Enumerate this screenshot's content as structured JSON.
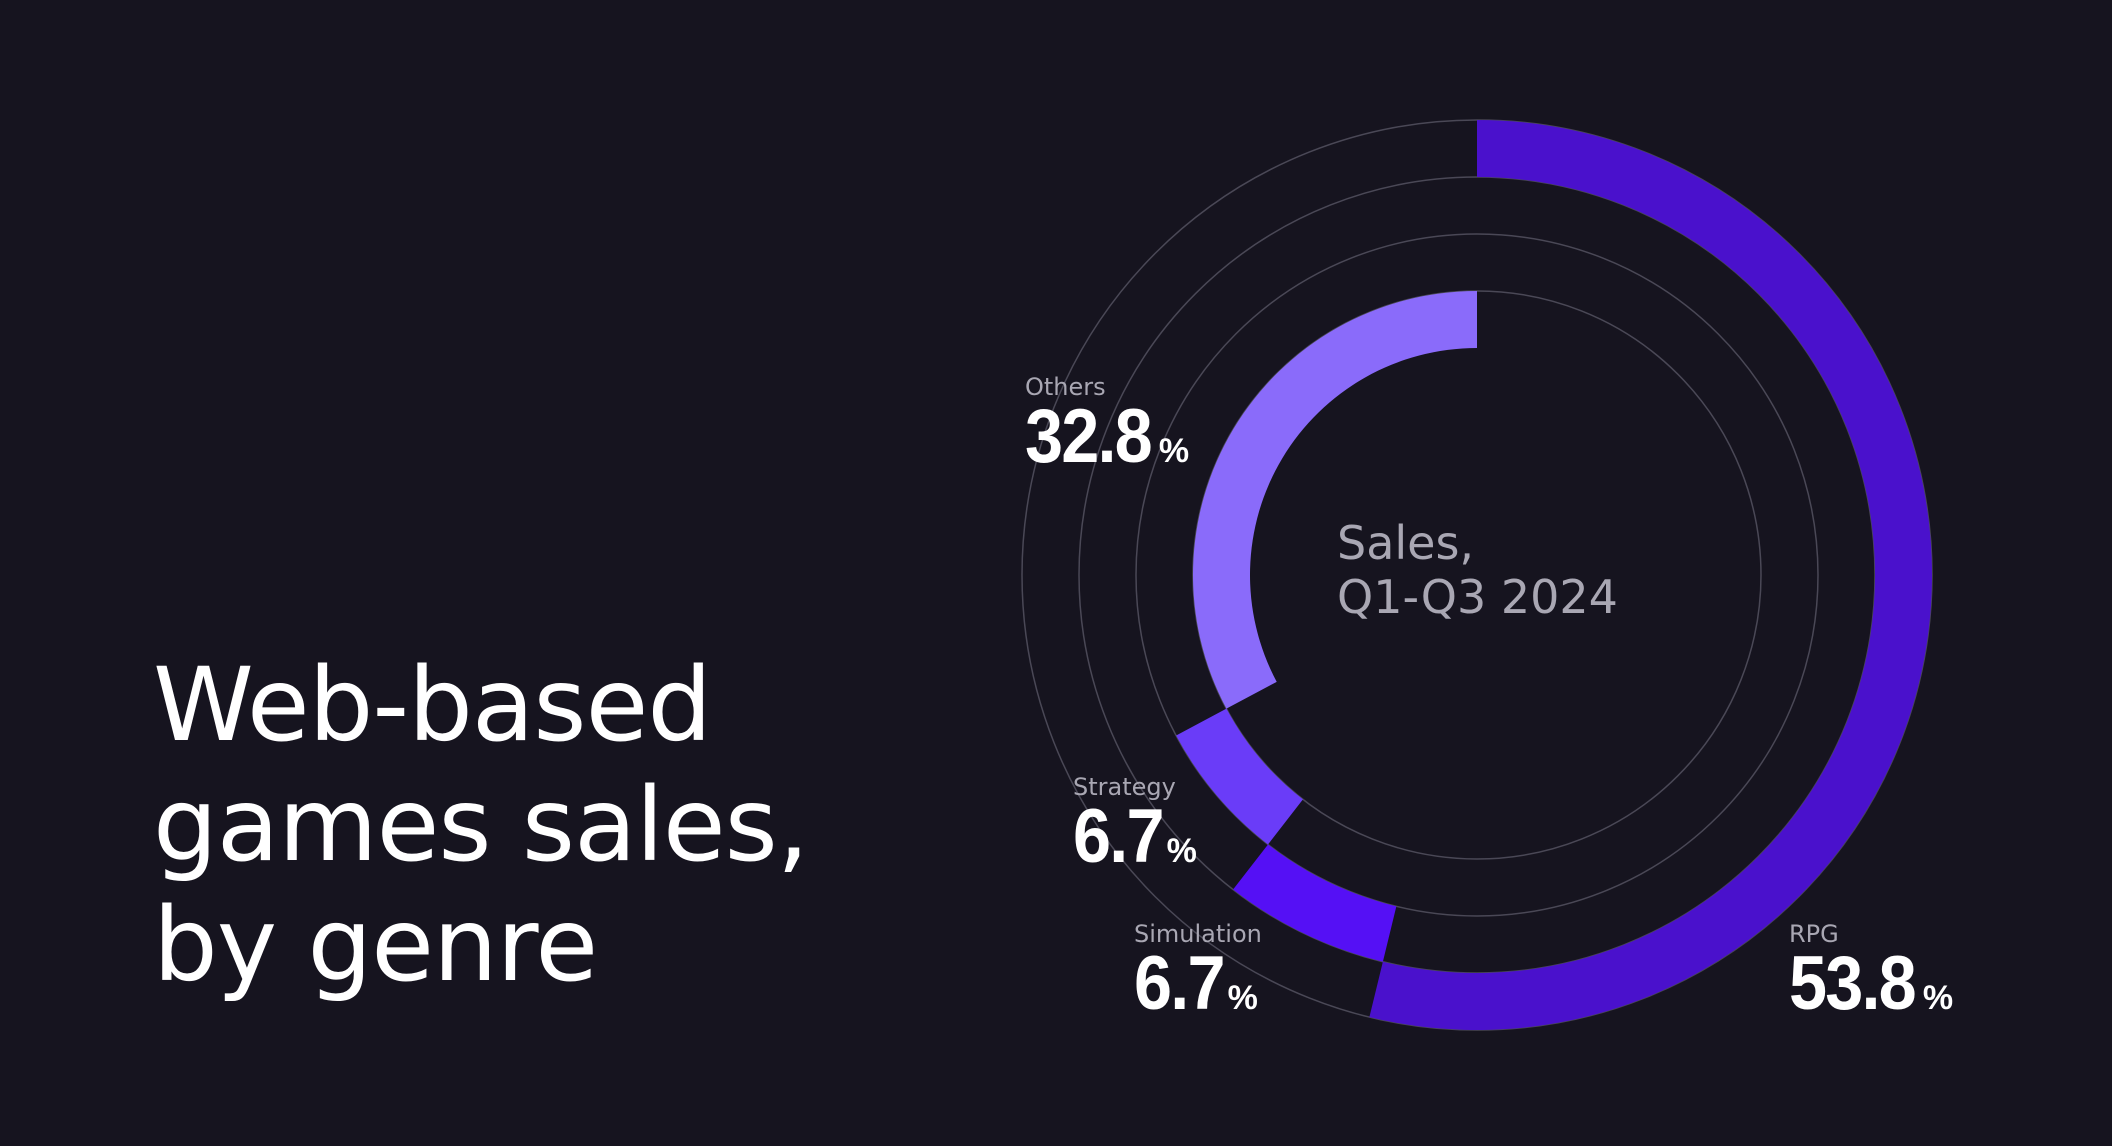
{
  "title": "Web-based\ngames sales,\nby genre",
  "center_label": "Sales,\nQ1-Q3 2024",
  "colors": {
    "background": "#16141f",
    "guide_ring": "#4a4856",
    "RPG": "#4a11cc",
    "Simulation": "#5510f5",
    "Strategy": "#6a3cf8",
    "Others": "#8a6bfa"
  },
  "chart_data": {
    "type": "pie",
    "style": "radial-bar",
    "title": "Web-based games sales, by genre",
    "subtitle": "Sales, Q1-Q3 2024",
    "unit": "%",
    "segments": [
      {
        "name": "RPG",
        "value": 53.8,
        "display": "53.8"
      },
      {
        "name": "Simulation",
        "value": 6.7,
        "display": "6.7"
      },
      {
        "name": "Strategy",
        "value": 6.7,
        "display": "6.7"
      },
      {
        "name": "Others",
        "value": 32.8,
        "display": "32.8"
      }
    ]
  }
}
